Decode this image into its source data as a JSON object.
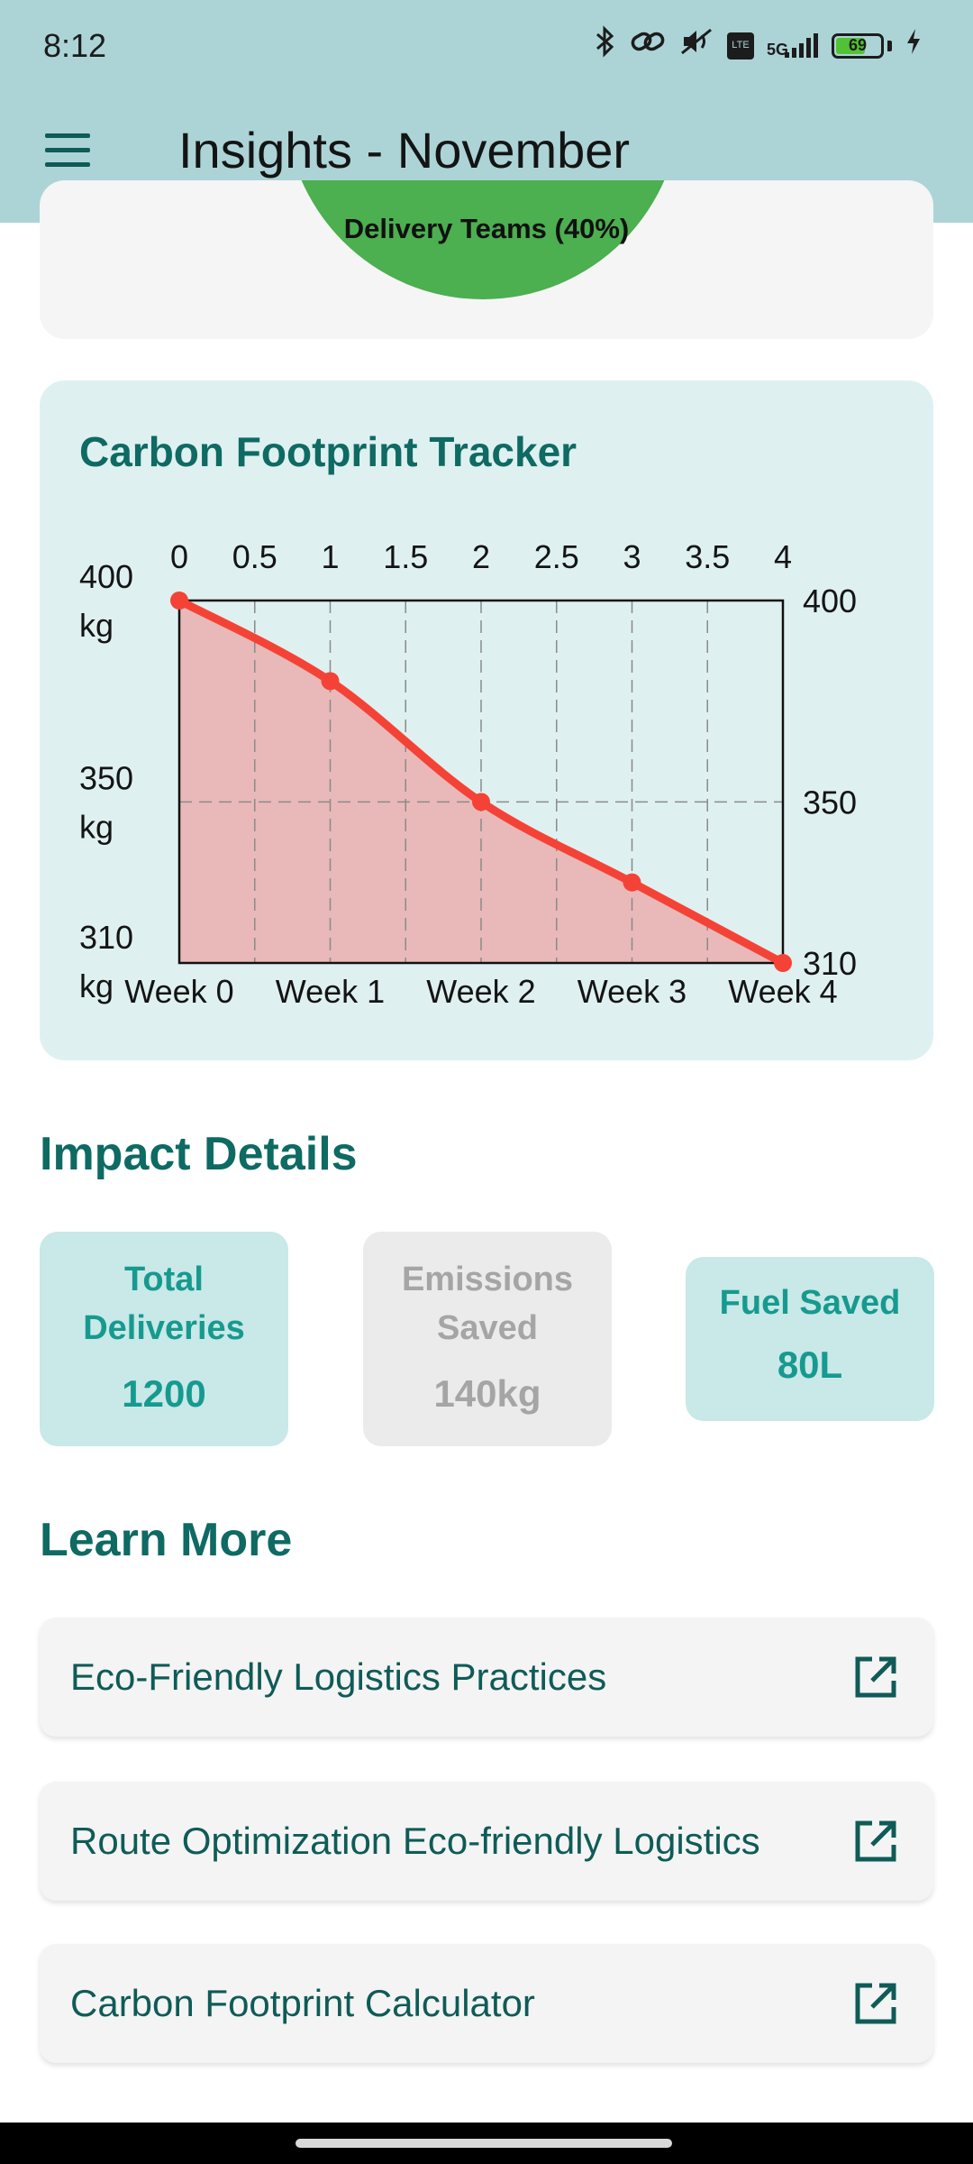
{
  "status_bar": {
    "time": "8:12",
    "network": "5G",
    "battery": "69",
    "battery_level_percent": 69,
    "volte_label": "VoLTE"
  },
  "app_bar": {
    "title": "Insights - November",
    "menu_icon": "hamburger-menu-icon"
  },
  "pie_card": {
    "visible_label": "Delivery Teams (40%)",
    "slice_color": "#4caf50"
  },
  "carbon_card": {
    "title": "Carbon Footprint Tracker"
  },
  "chart_data": {
    "type": "area",
    "title": "Carbon Footprint Tracker",
    "x": [
      0,
      1,
      2,
      3,
      4
    ],
    "x_tick_labels_bottom": [
      "Week 0",
      "Week 1",
      "Week 2",
      "Week 3",
      "Week 4"
    ],
    "x_tick_labels_top": [
      "0",
      "0.5",
      "1",
      "1.5",
      "2",
      "2.5",
      "3",
      "3.5",
      "4"
    ],
    "xlim": [
      0,
      4
    ],
    "values": [
      400,
      380,
      350,
      330,
      310
    ],
    "ylim": [
      310,
      400
    ],
    "y_tick_labels_left": [
      "400 kg",
      "350 kg",
      "310 kg"
    ],
    "y_tick_labels_right": [
      "400",
      "350",
      "310"
    ],
    "y_ticks": [
      400,
      350,
      310
    ],
    "line_color": "#f44336",
    "fill_color": "#e8b9b8",
    "grid": true
  },
  "impact": {
    "title": "Impact Details",
    "stats": [
      {
        "label_line1": "Total",
        "label_line2": "Deliveries",
        "value": "1200"
      },
      {
        "label_line1": "Emissions",
        "label_line2": "Saved",
        "value": "140kg"
      },
      {
        "label": "Fuel Saved",
        "value": "80L"
      }
    ]
  },
  "learn_more": {
    "title": "Learn More",
    "links": [
      {
        "label": "Eco-Friendly Logistics Practices",
        "icon": "open-in-new-icon"
      },
      {
        "label": "Route Optimization Eco-friendly Logistics",
        "icon": "open-in-new-icon"
      },
      {
        "label": "Carbon Footprint Calculator",
        "icon": "open-in-new-icon"
      }
    ]
  },
  "colors": {
    "app_bar": "#acd4d6",
    "accent": "#0e6a63",
    "card_teal": "#dff0f0"
  }
}
